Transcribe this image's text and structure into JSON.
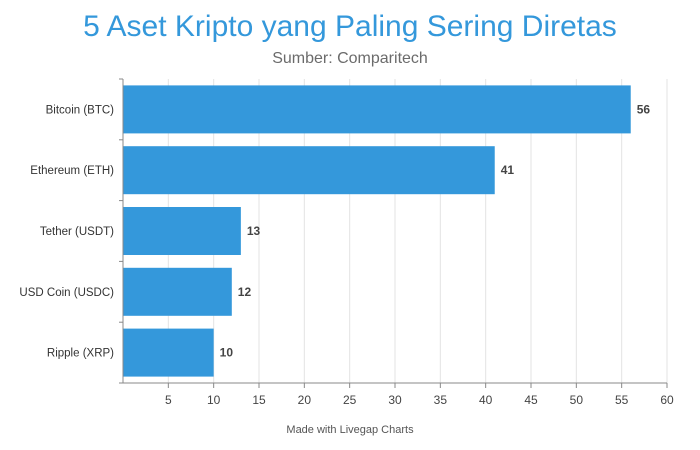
{
  "chart_data": {
    "type": "bar",
    "orientation": "horizontal",
    "title": "5 Aset Kripto yang Paling Sering Diretas",
    "subtitle": "Sumber: Comparitech",
    "categories": [
      "Bitcoin (BTC)",
      "Ethereum (ETH)",
      "Tether (USDT)",
      "USD Coin (USDC)",
      "Ripple (XRP)"
    ],
    "values": [
      56,
      41,
      13,
      12,
      10
    ],
    "xlim": [
      0,
      60
    ],
    "xticks": [
      5,
      10,
      15,
      20,
      25,
      30,
      35,
      40,
      45,
      50,
      55,
      60
    ],
    "grid": true,
    "bar_color": "#3498db",
    "credit": "Made with Livegap Charts"
  }
}
